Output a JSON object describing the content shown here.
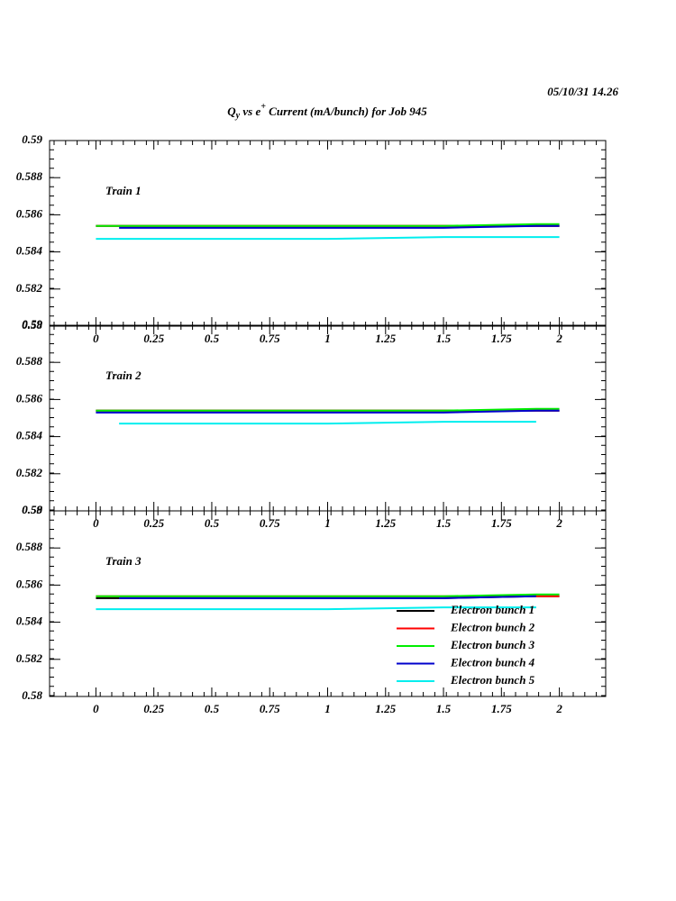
{
  "header": {
    "date": "05/10/31   14.26",
    "title": [
      "Q",
      "y",
      " vs e",
      "+",
      " Current (mA/bunch) for Job 945"
    ]
  },
  "chart_data": [
    {
      "type": "line",
      "annotation": "Train 1",
      "x": [
        0,
        0.1,
        0.5,
        1,
        1.5,
        1.9,
        2
      ],
      "series": [
        {
          "color": "#000000",
          "values": [
            0.5854,
            0.5854,
            0.5854,
            0.5854,
            0.5854,
            0.5854,
            0.5854
          ]
        },
        {
          "color": "#ff0000",
          "values": [
            0.5854,
            0.5854,
            0.5854,
            0.5854,
            0.5854,
            0.5854,
            0.5854
          ]
        },
        {
          "color": "#00ee00",
          "values": [
            0.5854,
            0.5854,
            0.5854,
            0.5854,
            0.5854,
            0.5855,
            0.5855
          ]
        },
        {
          "color": "#0000cc",
          "values": [
            null,
            0.5853,
            0.5853,
            0.5853,
            0.5853,
            0.5854,
            0.5854
          ]
        },
        {
          "color": "#00eeee",
          "values": [
            0.5847,
            0.5847,
            0.5847,
            0.5847,
            0.5848,
            0.5848,
            0.5848
          ]
        }
      ],
      "xlim": [
        -0.2,
        2.2
      ],
      "xticks": [
        0,
        0.25,
        0.5,
        0.75,
        1,
        1.25,
        1.5,
        1.75,
        2
      ],
      "ylim": [
        0.58,
        0.59
      ],
      "yticks": [
        0.58,
        0.582,
        0.584,
        0.586,
        0.588,
        0.59
      ]
    },
    {
      "type": "line",
      "annotation": "Train 2",
      "x": [
        0,
        0.1,
        0.5,
        1,
        1.5,
        1.9,
        2
      ],
      "series": [
        {
          "color": "#000000",
          "values": [
            0.5854,
            0.5854,
            0.5854,
            0.5854,
            0.5854,
            0.5854,
            0.5854
          ]
        },
        {
          "color": "#ff0000",
          "values": [
            0.5854,
            0.5854,
            0.5854,
            0.5854,
            0.5854,
            0.5854,
            0.5854
          ]
        },
        {
          "color": "#00ee00",
          "values": [
            0.5854,
            0.5854,
            0.5854,
            0.5854,
            0.5854,
            0.5855,
            0.5855
          ]
        },
        {
          "color": "#0000cc",
          "values": [
            0.5853,
            0.5853,
            0.5853,
            0.5853,
            0.5853,
            0.5854,
            0.5854
          ]
        },
        {
          "color": "#00eeee",
          "values": [
            null,
            0.5847,
            0.5847,
            0.5847,
            0.5848,
            0.5848,
            null
          ]
        }
      ],
      "xlim": [
        -0.2,
        2.2
      ],
      "xticks": [
        0,
        0.25,
        0.5,
        0.75,
        1,
        1.25,
        1.5,
        1.75,
        2
      ],
      "ylim": [
        0.58,
        0.59
      ],
      "yticks": [
        0.58,
        0.582,
        0.584,
        0.586,
        0.588,
        0.59
      ]
    },
    {
      "type": "line",
      "annotation": "Train 3",
      "x": [
        0,
        0.1,
        0.5,
        1,
        1.5,
        1.9,
        2
      ],
      "series": [
        {
          "name": "Electron bunch 1",
          "color": "#000000",
          "values": [
            0.5853,
            0.5853,
            0.5853,
            0.5853,
            0.5853,
            0.5854,
            0.5854
          ]
        },
        {
          "name": "Electron bunch 2",
          "color": "#ff0000",
          "values": [
            0.5854,
            0.5854,
            0.5854,
            0.5854,
            0.5854,
            0.5854,
            0.5854
          ]
        },
        {
          "name": "Electron bunch 3",
          "color": "#00ee00",
          "values": [
            0.5854,
            0.5854,
            0.5854,
            0.5854,
            0.5854,
            0.5855,
            0.5855
          ]
        },
        {
          "name": "Electron bunch 4",
          "color": "#0000cc",
          "values": [
            null,
            0.5853,
            0.5853,
            0.5853,
            0.5853,
            0.5854,
            null
          ]
        },
        {
          "name": "Electron bunch 5",
          "color": "#00eeee",
          "values": [
            0.5847,
            0.5847,
            0.5847,
            0.5847,
            0.5848,
            0.5848,
            null
          ]
        }
      ],
      "legend": "lower right",
      "xlim": [
        -0.2,
        2.2
      ],
      "xticks": [
        0,
        0.25,
        0.5,
        0.75,
        1,
        1.25,
        1.5,
        1.75,
        2
      ],
      "ylim": [
        0.58,
        0.59
      ],
      "yticks": [
        0.58,
        0.582,
        0.584,
        0.586,
        0.588,
        0.59
      ]
    }
  ]
}
